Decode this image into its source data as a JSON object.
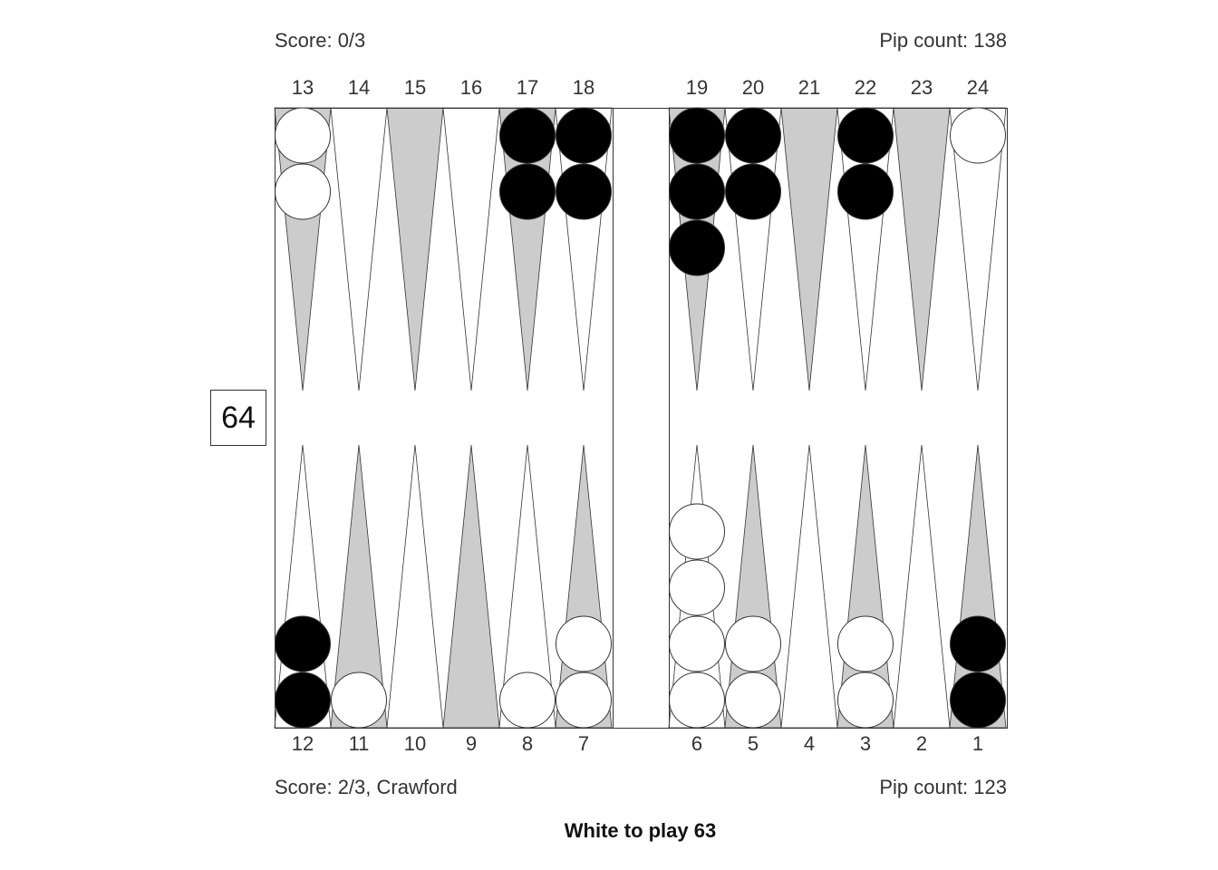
{
  "top_player": {
    "score": "Score: 0/3",
    "pip_count": "Pip count: 138"
  },
  "bottom_player": {
    "score": "Score: 2/3, Crawford",
    "pip_count": "Pip count: 123"
  },
  "status": "White to play 63",
  "cube_value": "64",
  "colors": {
    "light_point": "#ffffff",
    "dark_point": "#cccccc",
    "black_checker": "#000000",
    "white_checker": "#ffffff",
    "outline": "#333333"
  },
  "top_points": [
    "13",
    "14",
    "15",
    "16",
    "17",
    "18",
    "19",
    "20",
    "21",
    "22",
    "23",
    "24"
  ],
  "bottom_points": [
    "12",
    "11",
    "10",
    "9",
    "8",
    "7",
    "6",
    "5",
    "4",
    "3",
    "2",
    "1"
  ],
  "checkers": [
    {
      "point": 13,
      "color": "white",
      "count": 2
    },
    {
      "point": 17,
      "color": "black",
      "count": 2
    },
    {
      "point": 18,
      "color": "black",
      "count": 2
    },
    {
      "point": 19,
      "color": "black",
      "count": 3
    },
    {
      "point": 20,
      "color": "black",
      "count": 2
    },
    {
      "point": 22,
      "color": "black",
      "count": 2
    },
    {
      "point": 24,
      "color": "white",
      "count": 1
    },
    {
      "point": 12,
      "color": "black",
      "count": 2
    },
    {
      "point": 11,
      "color": "white",
      "count": 1
    },
    {
      "point": 8,
      "color": "white",
      "count": 1
    },
    {
      "point": 7,
      "color": "white",
      "count": 2
    },
    {
      "point": 6,
      "color": "white",
      "count": 4
    },
    {
      "point": 5,
      "color": "white",
      "count": 2
    },
    {
      "point": 3,
      "color": "white",
      "count": 2
    },
    {
      "point": 1,
      "color": "black",
      "count": 2
    }
  ]
}
